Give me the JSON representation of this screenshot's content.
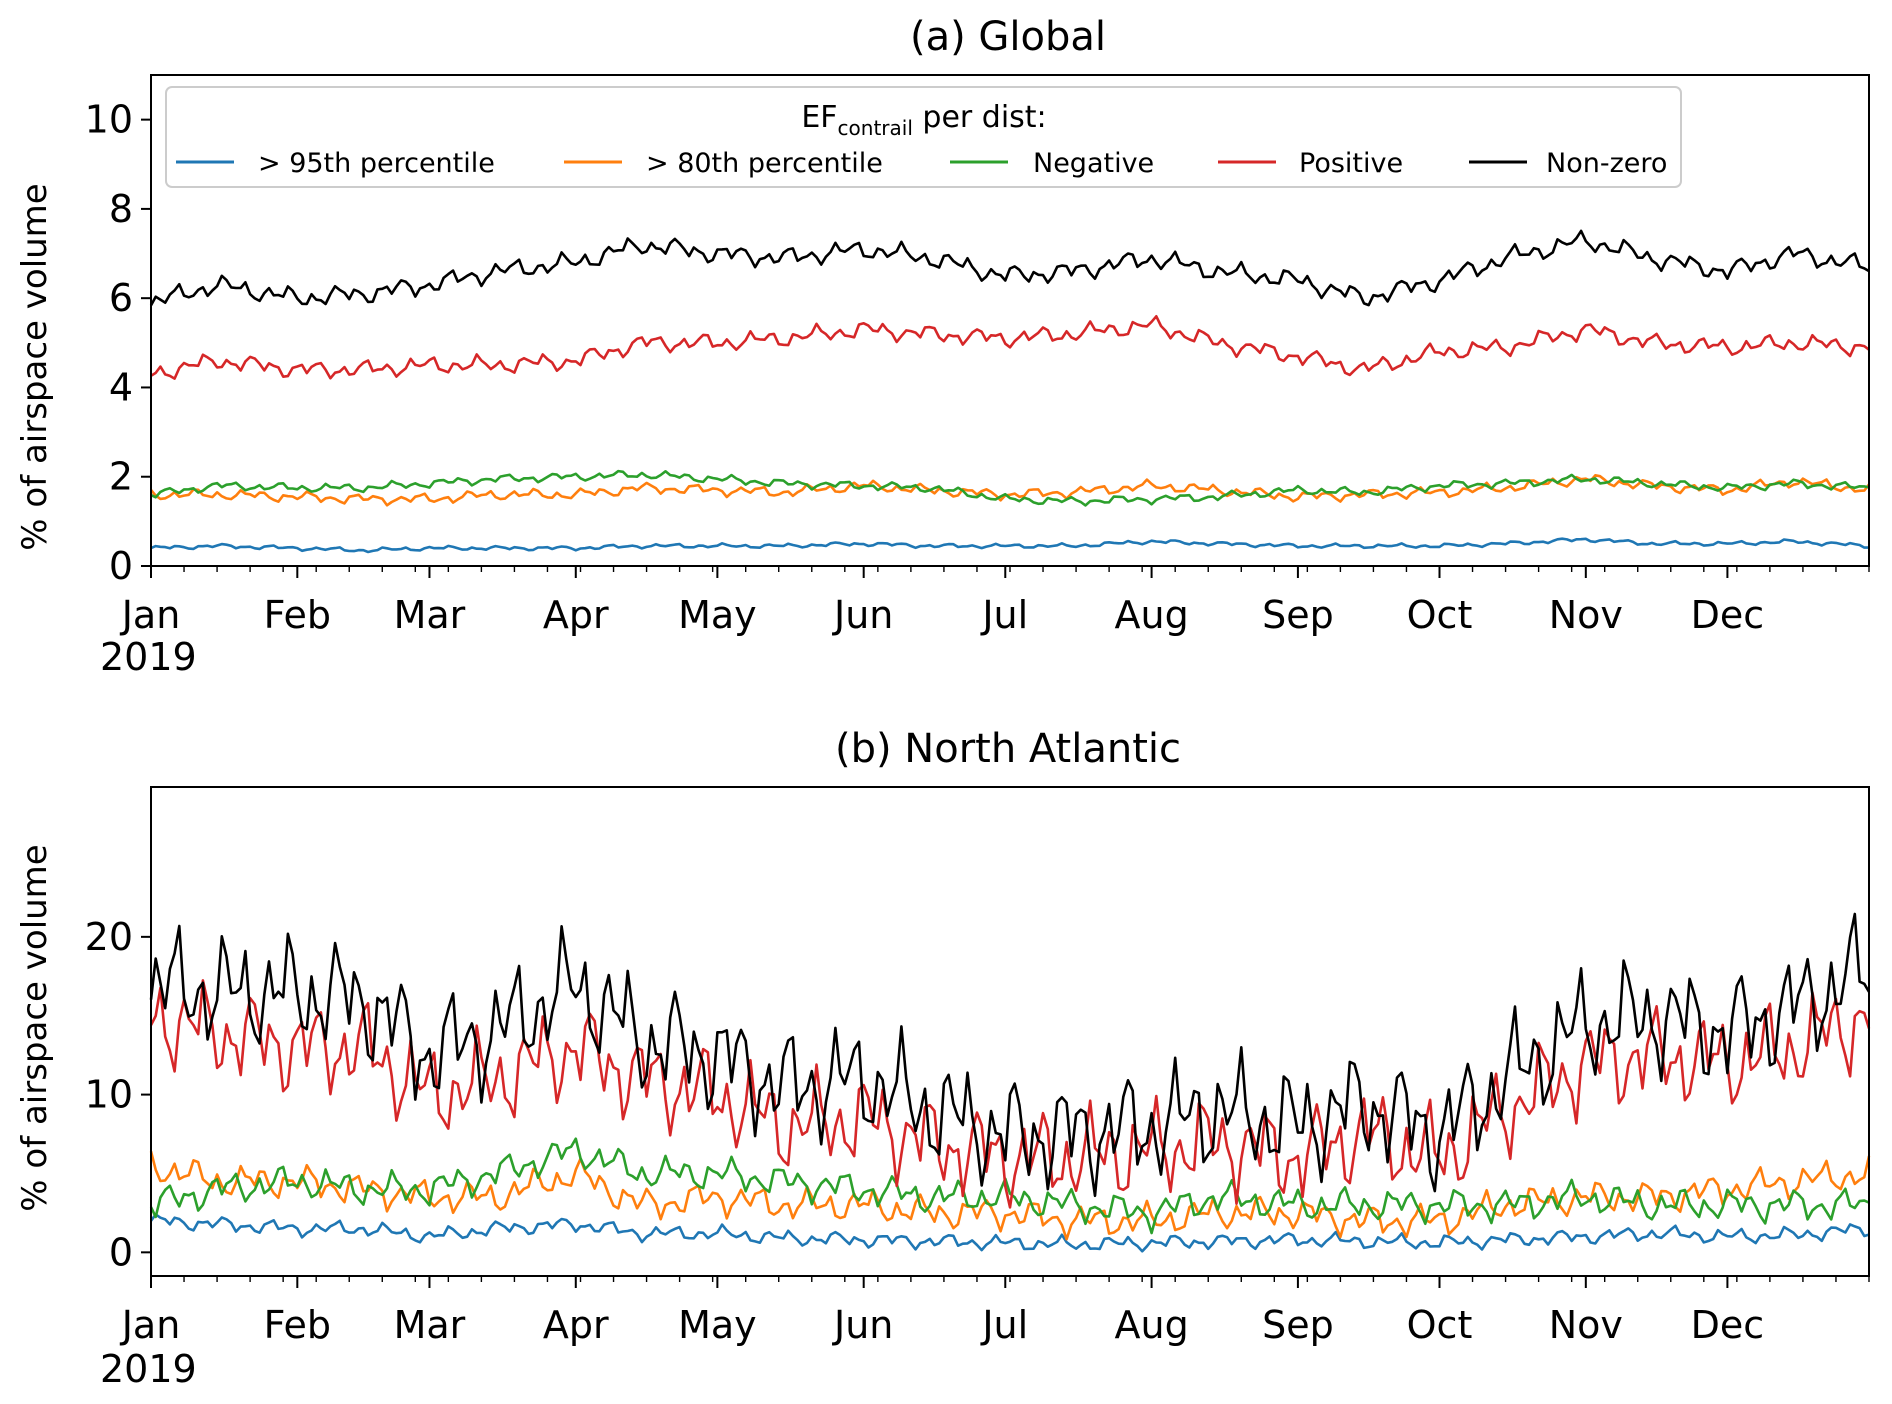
{
  "chart_data": [
    {
      "type": "line",
      "title": "(a) Global",
      "ylabel": "% of airspace volume",
      "x_type": "date",
      "xlim": [
        "2019-01-01",
        "2019-12-31"
      ],
      "x_tick_labels": [
        "Jan",
        "Feb",
        "Mar",
        "Apr",
        "May",
        "Jun",
        "Jul",
        "Aug",
        "Sep",
        "Oct",
        "Nov",
        "Dec"
      ],
      "x_year_label": "2019",
      "ylim": [
        0,
        11
      ],
      "y_ticks": [
        0,
        2,
        4,
        6,
        8,
        10
      ],
      "grid": false,
      "legend": {
        "position": "top",
        "title_main": "EF",
        "title_sub": "contrail",
        "title_rest": " per dist:",
        "entries": [
          {
            "name": "> 95th percentile",
            "color": "#1f77b4"
          },
          {
            "name": "> 80th percentile",
            "color": "#ff7f0e"
          },
          {
            "name": "Negative",
            "color": "#2ca02c"
          },
          {
            "name": "Positive",
            "color": "#d62728"
          },
          {
            "name": "Non-zero",
            "color": "#000000"
          }
        ]
      },
      "x": [
        "2019-01-01",
        "2019-01-15",
        "2019-02-01",
        "2019-02-15",
        "2019-03-01",
        "2019-03-15",
        "2019-04-01",
        "2019-04-15",
        "2019-05-01",
        "2019-05-15",
        "2019-06-01",
        "2019-06-15",
        "2019-07-01",
        "2019-07-15",
        "2019-08-01",
        "2019-08-15",
        "2019-09-01",
        "2019-09-15",
        "2019-10-01",
        "2019-10-15",
        "2019-11-01",
        "2019-11-15",
        "2019-12-01",
        "2019-12-15",
        "2019-12-31"
      ],
      "series": [
        {
          "name": "> 95th percentile",
          "color": "#1f77b4",
          "values": [
            0.4,
            0.45,
            0.4,
            0.35,
            0.4,
            0.4,
            0.4,
            0.45,
            0.45,
            0.45,
            0.5,
            0.45,
            0.45,
            0.45,
            0.55,
            0.5,
            0.45,
            0.45,
            0.45,
            0.5,
            0.6,
            0.5,
            0.5,
            0.55,
            0.45
          ]
        },
        {
          "name": "> 80th percentile",
          "color": "#ff7f0e",
          "values": [
            1.6,
            1.6,
            1.55,
            1.5,
            1.5,
            1.6,
            1.6,
            1.75,
            1.7,
            1.65,
            1.8,
            1.7,
            1.6,
            1.65,
            1.8,
            1.7,
            1.55,
            1.6,
            1.65,
            1.75,
            1.95,
            1.8,
            1.7,
            1.9,
            1.7
          ]
        },
        {
          "name": "Negative",
          "color": "#2ca02c",
          "values": [
            1.6,
            1.8,
            1.75,
            1.75,
            1.85,
            1.95,
            2.0,
            2.05,
            1.95,
            1.85,
            1.8,
            1.75,
            1.5,
            1.45,
            1.5,
            1.55,
            1.7,
            1.65,
            1.8,
            1.85,
            1.95,
            1.85,
            1.75,
            1.85,
            1.75
          ]
        },
        {
          "name": "Positive",
          "color": "#d62728",
          "values": [
            4.3,
            4.6,
            4.4,
            4.4,
            4.5,
            4.5,
            4.6,
            5.0,
            5.0,
            5.1,
            5.3,
            5.2,
            5.1,
            5.2,
            5.4,
            5.0,
            4.7,
            4.4,
            4.8,
            4.9,
            5.3,
            5.0,
            4.9,
            5.0,
            4.9
          ]
        },
        {
          "name": "Non-zero",
          "color": "#000000",
          "values": [
            5.9,
            6.3,
            6.0,
            6.1,
            6.3,
            6.6,
            6.8,
            7.2,
            7.0,
            6.9,
            7.1,
            6.9,
            6.5,
            6.6,
            6.9,
            6.6,
            6.4,
            6.0,
            6.4,
            6.9,
            7.3,
            6.9,
            6.6,
            7.0,
            6.7
          ]
        }
      ]
    },
    {
      "type": "line",
      "title": "(b) North Atlantic",
      "ylabel": "% of airspace volume",
      "x_type": "date",
      "xlim": [
        "2019-01-01",
        "2019-12-31"
      ],
      "x_tick_labels": [
        "Jan",
        "Feb",
        "Mar",
        "Apr",
        "May",
        "Jun",
        "Jul",
        "Aug",
        "Sep",
        "Oct",
        "Nov",
        "Dec"
      ],
      "x_year_label": "2019",
      "ylim": [
        -1.5,
        29.5
      ],
      "y_ticks": [
        0,
        10,
        20
      ],
      "grid": false,
      "x": [
        "2019-01-01",
        "2019-01-15",
        "2019-02-01",
        "2019-02-15",
        "2019-03-01",
        "2019-03-15",
        "2019-04-01",
        "2019-04-15",
        "2019-05-01",
        "2019-05-15",
        "2019-06-01",
        "2019-06-15",
        "2019-07-01",
        "2019-07-15",
        "2019-08-01",
        "2019-08-15",
        "2019-09-01",
        "2019-09-15",
        "2019-10-01",
        "2019-10-15",
        "2019-11-01",
        "2019-11-15",
        "2019-12-01",
        "2019-12-15",
        "2019-12-31"
      ],
      "series": [
        {
          "name": "> 95th percentile",
          "color": "#1f77b4",
          "values": [
            2.0,
            1.8,
            1.5,
            1.5,
            1.0,
            1.5,
            1.8,
            1.2,
            1.2,
            0.9,
            0.8,
            0.7,
            0.6,
            0.5,
            0.6,
            0.7,
            0.8,
            0.7,
            0.6,
            0.8,
            1.0,
            1.2,
            1.0,
            1.1,
            1.5
          ]
        },
        {
          "name": "> 80th percentile",
          "color": "#ff7f0e",
          "values": [
            5.5,
            4.5,
            4.5,
            4.0,
            3.5,
            3.5,
            5.0,
            3.0,
            3.5,
            3.0,
            3.0,
            2.5,
            2.5,
            2.0,
            2.0,
            2.5,
            2.5,
            2.0,
            2.0,
            3.0,
            3.5,
            3.5,
            4.0,
            4.5,
            5.0
          ]
        },
        {
          "name": "Negative",
          "color": "#2ca02c",
          "values": [
            3.0,
            4.0,
            4.5,
            4.0,
            4.0,
            5.0,
            6.5,
            5.0,
            5.0,
            4.5,
            4.0,
            3.5,
            3.5,
            3.0,
            2.5,
            3.5,
            3.0,
            3.0,
            3.0,
            3.0,
            3.5,
            3.0,
            3.0,
            3.0,
            3.0
          ]
        },
        {
          "name": "Positive",
          "color": "#d62728",
          "values": [
            15.0,
            14.0,
            13.0,
            13.0,
            10.0,
            11.0,
            13.0,
            11.0,
            10.0,
            8.0,
            8.5,
            7.0,
            6.0,
            6.0,
            6.5,
            7.0,
            6.0,
            7.5,
            6.0,
            9.0,
            12.0,
            12.5,
            12.0,
            13.0,
            15.0
          ]
        },
        {
          "name": "Non-zero",
          "color": "#000000",
          "values": [
            17.0,
            16.5,
            16.5,
            16.0,
            12.5,
            14.0,
            17.0,
            13.5,
            12.5,
            10.5,
            11.0,
            9.0,
            7.5,
            7.5,
            8.0,
            9.0,
            8.0,
            9.5,
            7.5,
            11.0,
            14.5,
            15.0,
            14.0,
            15.5,
            18.0
          ]
        }
      ]
    }
  ]
}
